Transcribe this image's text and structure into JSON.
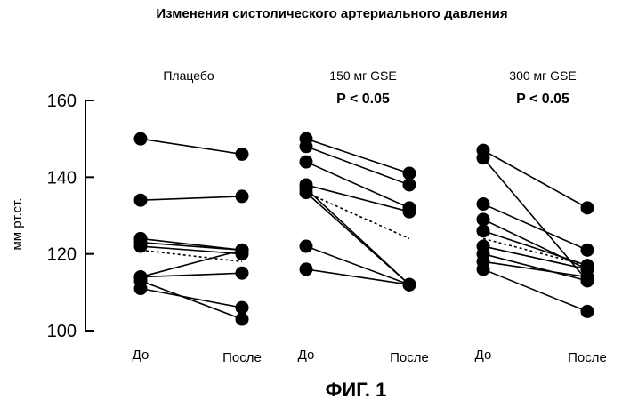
{
  "figure": {
    "title": "Изменения систолического артериального давления",
    "caption": "ФИГ. 1"
  },
  "chart_data": {
    "type": "scatter",
    "ylabel": "мм рт.ст.",
    "ylim": [
      100,
      160
    ],
    "yticks": [
      100,
      120,
      140,
      160
    ],
    "grid": false,
    "groups": [
      {
        "label": "Плацебо",
        "pvalue": "",
        "x_labels": [
          "До",
          "После"
        ],
        "pairs": [
          [
            150,
            146
          ],
          [
            134,
            135
          ],
          [
            124,
            121
          ],
          [
            123,
            121
          ],
          [
            122,
            120
          ],
          [
            114,
            121
          ],
          [
            114,
            115
          ],
          [
            113,
            103
          ],
          [
            111,
            106
          ]
        ],
        "mean": [
          121,
          118
        ]
      },
      {
        "label": "150 мг GSE",
        "pvalue": "P < 0.05",
        "x_labels": [
          "До",
          "После"
        ],
        "pairs": [
          [
            150,
            141
          ],
          [
            148,
            138
          ],
          [
            144,
            132
          ],
          [
            138,
            131
          ],
          [
            137,
            112
          ],
          [
            136,
            112
          ],
          [
            122,
            112
          ],
          [
            116,
            112
          ]
        ],
        "mean": [
          136,
          124
        ]
      },
      {
        "label": "300 мг GSE",
        "pvalue": "P < 0.05",
        "x_labels": [
          "До",
          "После"
        ],
        "pairs": [
          [
            147,
            132
          ],
          [
            145,
            113
          ],
          [
            133,
            121
          ],
          [
            129,
            116
          ],
          [
            126,
            117
          ],
          [
            122,
            116
          ],
          [
            120,
            113
          ],
          [
            118,
            114
          ],
          [
            116,
            105
          ]
        ],
        "mean": [
          124,
          117
        ]
      }
    ]
  }
}
